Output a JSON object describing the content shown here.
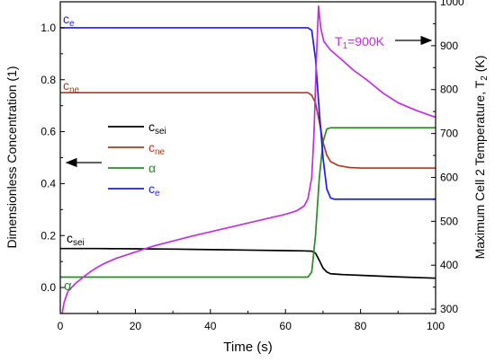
{
  "chart_data": {
    "type": "line",
    "xlabel": "Time (s)",
    "ylabel_left": "Dimensionless Concentration (1)",
    "ylabel_right": "Maximum Cell 2 Temperature, T",
    "ylabel_right_sub": "2",
    "ylabel_right_unit": " (K)",
    "xlim": [
      0,
      100
    ],
    "ylim_left": [
      -0.1,
      1.1
    ],
    "ylim_right": [
      290,
      1000
    ],
    "x_ticks": [
      0,
      20,
      40,
      60,
      80,
      100
    ],
    "y_left_ticks": [
      0.0,
      0.2,
      0.4,
      0.6,
      0.8,
      1.0
    ],
    "y_right_ticks": [
      300,
      400,
      500,
      600,
      700,
      800,
      900,
      1000
    ],
    "grid": false,
    "legend_placement": "center-left",
    "series": [
      {
        "name": "c",
        "sub": "sei",
        "color": "#000000",
        "axis": "left",
        "points": [
          [
            0,
            0.15
          ],
          [
            10,
            0.15
          ],
          [
            20,
            0.149
          ],
          [
            30,
            0.148
          ],
          [
            40,
            0.146
          ],
          [
            50,
            0.144
          ],
          [
            60,
            0.142
          ],
          [
            65,
            0.141
          ],
          [
            67,
            0.14
          ],
          [
            68,
            0.132
          ],
          [
            69,
            0.105
          ],
          [
            70,
            0.075
          ],
          [
            71,
            0.06
          ],
          [
            72,
            0.053
          ],
          [
            75,
            0.05
          ],
          [
            80,
            0.047
          ],
          [
            90,
            0.041
          ],
          [
            100,
            0.036
          ]
        ]
      },
      {
        "name": "c",
        "sub": "ne",
        "color": "#b03a1e",
        "axis": "left",
        "points": [
          [
            0,
            0.75
          ],
          [
            10,
            0.75
          ],
          [
            20,
            0.75
          ],
          [
            30,
            0.75
          ],
          [
            40,
            0.75
          ],
          [
            50,
            0.75
          ],
          [
            60,
            0.75
          ],
          [
            66,
            0.75
          ],
          [
            67,
            0.74
          ],
          [
            68,
            0.71
          ],
          [
            69,
            0.64
          ],
          [
            70,
            0.56
          ],
          [
            71,
            0.51
          ],
          [
            72,
            0.485
          ],
          [
            74,
            0.47
          ],
          [
            77,
            0.462
          ],
          [
            80,
            0.46
          ],
          [
            90,
            0.46
          ],
          [
            100,
            0.46
          ]
        ]
      },
      {
        "name": "α",
        "sub": "",
        "color": "#2a8a2a",
        "axis": "left",
        "points": [
          [
            0,
            0.04
          ],
          [
            20,
            0.04
          ],
          [
            40,
            0.04
          ],
          [
            60,
            0.04
          ],
          [
            66,
            0.04
          ],
          [
            67,
            0.06
          ],
          [
            68,
            0.2
          ],
          [
            69,
            0.42
          ],
          [
            70,
            0.56
          ],
          [
            71,
            0.61
          ],
          [
            72,
            0.615
          ],
          [
            75,
            0.615
          ],
          [
            80,
            0.615
          ],
          [
            90,
            0.615
          ],
          [
            100,
            0.615
          ]
        ]
      },
      {
        "name": "c",
        "sub": "e",
        "color": "#1a1aff",
        "axis": "left",
        "points": [
          [
            0,
            1.0
          ],
          [
            20,
            1.0
          ],
          [
            40,
            1.0
          ],
          [
            60,
            1.0
          ],
          [
            66,
            1.0
          ],
          [
            67,
            0.99
          ],
          [
            68,
            0.88
          ],
          [
            69,
            0.68
          ],
          [
            70,
            0.5
          ],
          [
            71,
            0.38
          ],
          [
            72,
            0.345
          ],
          [
            73,
            0.34
          ],
          [
            80,
            0.34
          ],
          [
            90,
            0.34
          ],
          [
            100,
            0.34
          ]
        ]
      },
      {
        "name": "T",
        "sub": "1",
        "color": "#c12ee0",
        "axis": "right",
        "points": [
          [
            0.5,
            290
          ],
          [
            1,
            315
          ],
          [
            2,
            340
          ],
          [
            4,
            358
          ],
          [
            6,
            372
          ],
          [
            8,
            385
          ],
          [
            10,
            396
          ],
          [
            12,
            405
          ],
          [
            15,
            416
          ],
          [
            20,
            430
          ],
          [
            25,
            444
          ],
          [
            30,
            455
          ],
          [
            35,
            466
          ],
          [
            40,
            476
          ],
          [
            45,
            486
          ],
          [
            50,
            496
          ],
          [
            55,
            506
          ],
          [
            60,
            516
          ],
          [
            63,
            524
          ],
          [
            65,
            535
          ],
          [
            66,
            552
          ],
          [
            67,
            600
          ],
          [
            67.6,
            700
          ],
          [
            68.2,
            860
          ],
          [
            68.8,
            990
          ],
          [
            69.4,
            940
          ],
          [
            70.2,
            910
          ],
          [
            72,
            890
          ],
          [
            75,
            868
          ],
          [
            78,
            845
          ],
          [
            82,
            820
          ],
          [
            86,
            792
          ],
          [
            90,
            770
          ],
          [
            95,
            752
          ],
          [
            100,
            737
          ]
        ]
      }
    ],
    "annotations": {
      "top_left_ce": {
        "base": "c",
        "sub": "e"
      },
      "left_cne": {
        "base": "c",
        "sub": "ne"
      },
      "left_csei": {
        "base": "c",
        "sub": "sei"
      },
      "left_alpha": {
        "base": "α"
      },
      "t1_label": {
        "base": "T",
        "sub": "1",
        "rest": "=900K"
      }
    }
  }
}
